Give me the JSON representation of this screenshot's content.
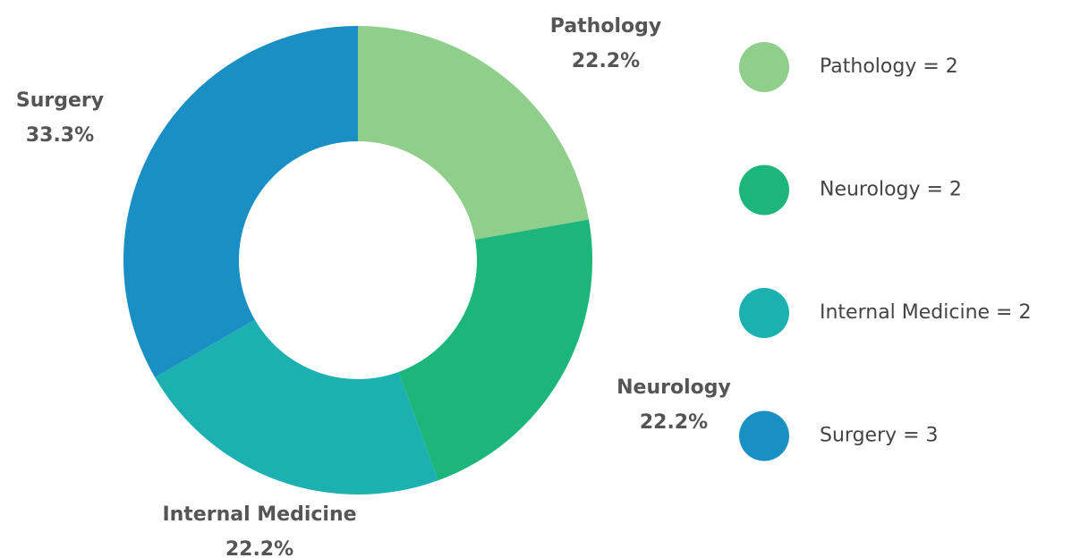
{
  "chart_data": {
    "type": "donut",
    "categories": [
      "Pathology",
      "Neurology",
      "Internal Medicine",
      "Surgery"
    ],
    "values": [
      2,
      2,
      2,
      3
    ],
    "value_labels": [
      "22.2%",
      "22.2%",
      "22.2%",
      "33.3%"
    ],
    "legend": [
      "Pathology = 2",
      "Neurology = 2",
      "Internal Medicine = 2",
      "Surgery = 3"
    ],
    "colors": [
      "#8fce8b",
      "#1cb57a",
      "#1cb0b0",
      "#1a8fc3"
    ]
  }
}
